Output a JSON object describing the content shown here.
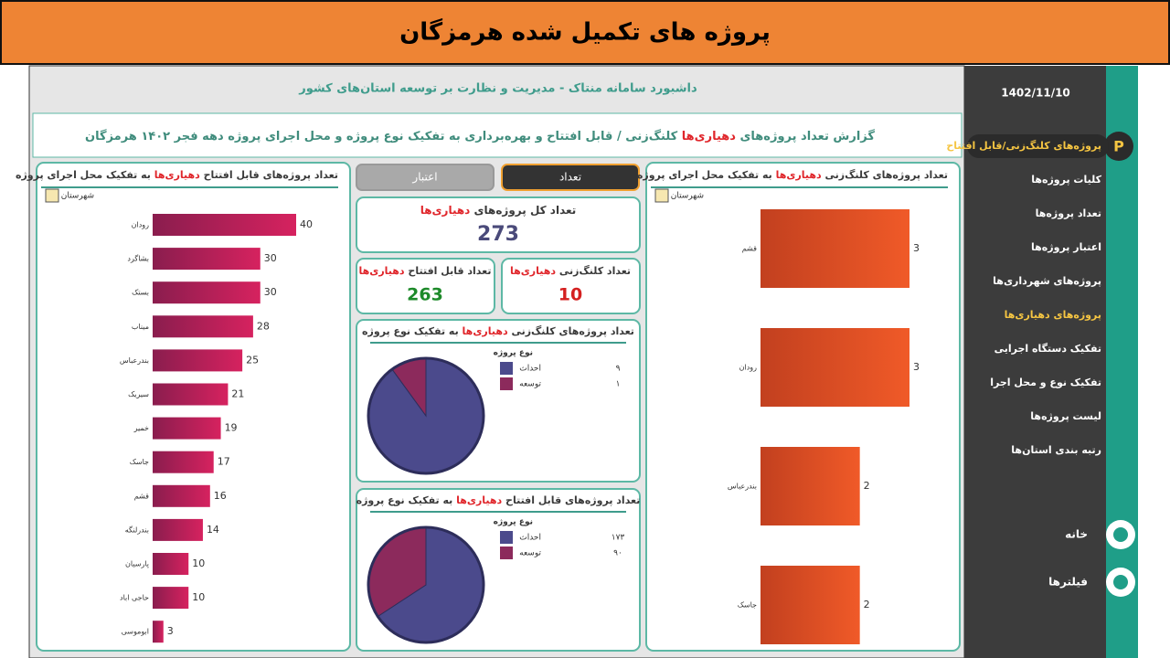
{
  "banner": {
    "title": "پروژه های تکمیل شده هرمزگان"
  },
  "dashboard": {
    "header": "داشبورد سامانه منتاک - مدیریت و نظارت بر توسعه استان‌های کشور",
    "report_title": [
      "گزارش تعداد پروژه‌های ",
      "دهیاری‌ها",
      " کلنگ‌زنی / قابل افتتاح و بهره‌برداری به تفکیک نوع پروژه و محل اجرای پروژه دهه فجر ۱۴۰۲ هرمزگان"
    ],
    "tabs": [
      {
        "label": "تعداد",
        "selected": true
      },
      {
        "label": "اعتبار",
        "selected": false
      }
    ],
    "kpi_total": {
      "title": [
        "تعداد کل پروژه‌های ",
        "دهیاری‌ها"
      ],
      "value": 273
    },
    "kpi_opening": {
      "title": [
        "تعداد قابل افتتاح ",
        "دهیاری‌ها"
      ],
      "value": 263
    },
    "kpi_groundbreaking": {
      "title": [
        "تعداد کلنگ‌زنی ",
        "دهیاری‌ها"
      ],
      "value": 10
    },
    "left_chart": {
      "title": [
        "تعداد پروژه‌های قابل افتتاح ",
        "دهیاری‌ها",
        " به تفکیک محل اجرای پروژه"
      ],
      "axis_label": "شهرستان",
      "categories": [
        "رودان",
        "بشاگرد",
        "بستک",
        "میناب",
        "بندرعباس",
        "سیریک",
        "خمیر",
        "جاسک",
        "قشم",
        "بندرلنگه",
        "پارسیان",
        "حاجی اباد",
        "ابوموسی"
      ],
      "values": [
        40,
        30,
        30,
        28,
        25,
        21,
        19,
        17,
        16,
        14,
        10,
        10,
        3
      ]
    },
    "right_chart": {
      "title": [
        "تعداد پروژه‌های کلنگ‌زنی ",
        "دهیاری‌ها",
        " به تفکیک محل اجرای پروژه"
      ],
      "axis_label": "شهرستان",
      "categories": [
        "قشم",
        "رودان",
        "بندرعباس",
        "جاسک"
      ],
      "values": [
        3,
        3,
        2,
        2
      ]
    },
    "pie_groundbreaking": {
      "title": [
        "تعداد پروژه‌های کلنگ‌زنی ",
        "دهیاری‌ها",
        " به تفکیک نوع پروژه"
      ],
      "legend_title": "نوع پروژه",
      "series": [
        {
          "name": "احداث",
          "color": "#4b4a8c",
          "value": 9,
          "value_label": "۹"
        },
        {
          "name": "توسعه",
          "color": "#8c2a5c",
          "value": 1,
          "value_label": "۱"
        }
      ]
    },
    "pie_opening": {
      "title": [
        "تعداد پروژه‌های قابل افتتاح ",
        "دهیاری‌ها",
        " به تفکیک نوع پروژه"
      ],
      "legend_title": "نوع پروژه",
      "series": [
        {
          "name": "احداث",
          "color": "#4b4a8c",
          "value": 173,
          "value_label": "۱۷۳"
        },
        {
          "name": "توسعه",
          "color": "#8c2a5c",
          "value": 90,
          "value_label": "۹۰"
        }
      ]
    }
  },
  "sidebar": {
    "date": "1402/11/10",
    "menu": [
      {
        "label": "پروژه‌های کلنگ‌زنی/قابل افتتاح",
        "highlighted": true
      },
      {
        "label": "کلیات پروژه‌ها",
        "highlighted": false
      },
      {
        "label": "تعداد پروژه‌ها",
        "highlighted": false
      },
      {
        "label": "اعتبار پروژه‌ها",
        "highlighted": false
      },
      {
        "label": "پروژه‌های شهرداری‌ها",
        "highlighted": false
      },
      {
        "label": "پروژه‌های دهیاری‌ها",
        "highlighted": true
      },
      {
        "label": "تفکیک دستگاه اجرایی",
        "highlighted": false
      },
      {
        "label": "تفکیک نوع و محل اجرا",
        "highlighted": false
      },
      {
        "label": "لیست پروژه‌ها",
        "highlighted": false
      },
      {
        "label": "رتبه بندی استان‌ها",
        "highlighted": false
      }
    ],
    "home": "خانه",
    "filters": "فیلترها"
  }
}
